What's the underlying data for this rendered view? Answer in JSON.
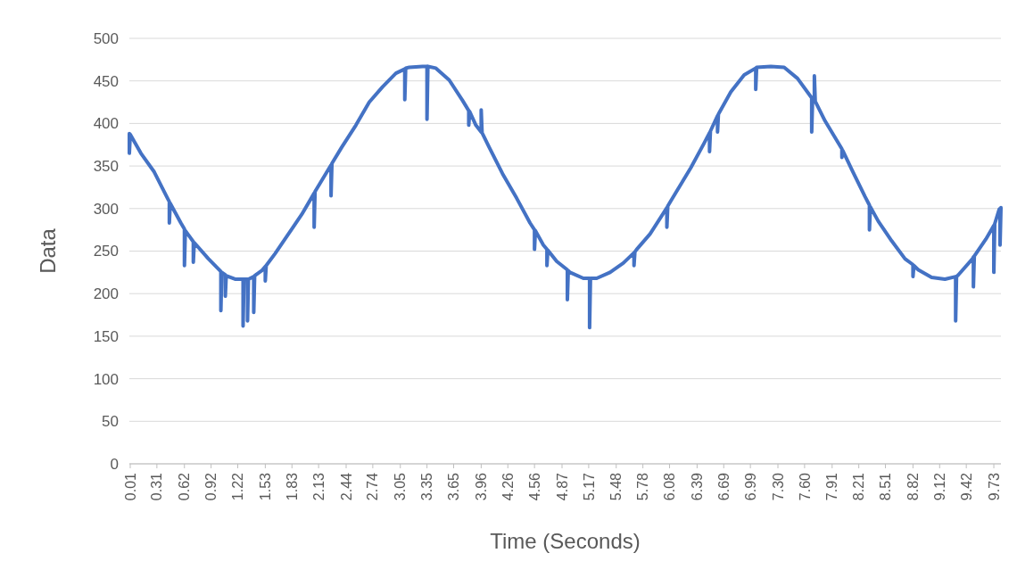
{
  "chart_data": {
    "type": "line",
    "xlabel": "Time (Seconds)",
    "ylabel": "Data",
    "x": [
      0.0,
      0.0,
      0.01,
      0.13,
      0.28,
      0.43,
      0.45,
      0.45,
      0.46,
      0.58,
      0.62,
      0.62,
      0.63,
      0.72,
      0.72,
      0.73,
      0.89,
      1.03,
      1.03,
      1.04,
      1.08,
      1.08,
      1.09,
      1.19,
      1.28,
      1.28,
      1.29,
      1.33,
      1.33,
      1.34,
      1.4,
      1.4,
      1.41,
      1.49,
      1.53,
      1.53,
      1.54,
      1.64,
      1.79,
      1.94,
      2.08,
      2.08,
      2.09,
      2.24,
      2.27,
      2.27,
      2.28,
      2.39,
      2.55,
      2.7,
      2.85,
      3.0,
      3.1,
      3.1,
      3.11,
      3.15,
      3.3,
      3.35,
      3.35,
      3.36,
      3.45,
      3.6,
      3.75,
      3.82,
      3.82,
      3.83,
      3.9,
      3.96,
      3.96,
      3.97,
      4.05,
      4.2,
      4.36,
      4.51,
      4.56,
      4.56,
      4.57,
      4.66,
      4.7,
      4.7,
      4.71,
      4.81,
      4.93,
      4.93,
      4.94,
      4.96,
      5.11,
      5.18,
      5.18,
      5.19,
      5.26,
      5.41,
      5.56,
      5.68,
      5.68,
      5.69,
      5.71,
      5.86,
      6.02,
      6.05,
      6.05,
      6.06,
      6.17,
      6.32,
      6.47,
      6.53,
      6.53,
      6.54,
      6.62,
      6.62,
      6.63,
      6.77,
      6.92,
      7.05,
      7.05,
      7.06,
      7.22,
      7.37,
      7.52,
      7.68,
      7.68,
      7.69,
      7.71,
      7.71,
      7.72,
      7.83,
      8.02,
      8.02,
      8.03,
      8.13,
      8.28,
      8.33,
      8.33,
      8.34,
      8.43,
      8.58,
      8.73,
      8.82,
      8.82,
      8.83,
      8.88,
      9.03,
      9.18,
      9.3,
      9.3,
      9.31,
      9.33,
      9.49,
      9.5,
      9.5,
      9.51,
      9.64,
      9.73,
      9.73,
      9.74,
      9.79,
      9.8,
      9.8,
      9.81
    ],
    "series": [
      {
        "color": "#4472c4",
        "values": [
          388,
          365,
          387,
          365,
          343,
          312,
          308,
          283,
          306,
          283,
          276,
          233,
          274,
          261,
          237,
          260,
          241,
          226,
          180,
          225,
          222,
          197,
          221,
          217,
          217,
          162,
          217,
          217,
          168,
          217,
          220,
          178,
          221,
          227,
          232,
          215,
          233,
          247,
          270,
          293,
          318,
          278,
          320,
          346,
          351,
          315,
          353,
          372,
          398,
          425,
          443,
          459,
          464,
          428,
          465,
          466,
          467,
          467,
          405,
          467,
          465,
          451,
          427,
          415,
          398,
          414,
          398,
          390,
          416,
          389,
          372,
          341,
          312,
          283,
          275,
          252,
          274,
          257,
          252,
          233,
          251,
          238,
          228,
          193,
          227,
          225,
          218,
          218,
          160,
          218,
          218,
          225,
          236,
          248,
          233,
          249,
          252,
          270,
          296,
          301,
          278,
          303,
          322,
          348,
          377,
          389,
          367,
          391,
          409,
          390,
          411,
          437,
          457,
          465,
          440,
          466,
          467,
          466,
          453,
          430,
          390,
          429,
          427,
          456,
          426,
          403,
          370,
          360,
          368,
          346,
          314,
          304,
          275,
          302,
          285,
          262,
          241,
          234,
          220,
          233,
          228,
          219,
          217,
          220,
          168,
          220,
          222,
          241,
          243,
          208,
          244,
          264,
          280,
          225,
          282,
          299,
          300,
          257,
          301
        ]
      }
    ],
    "xlim": [
      0,
      9.81
    ],
    "xticks": [
      0.01,
      0.31,
      0.62,
      0.92,
      1.22,
      1.53,
      1.83,
      2.13,
      2.44,
      2.74,
      3.05,
      3.35,
      3.65,
      3.96,
      4.26,
      4.56,
      4.87,
      5.17,
      5.48,
      5.78,
      6.08,
      6.39,
      6.69,
      6.99,
      {
        "value": 7.3,
        "label": "7.30"
      },
      {
        "value": 7.6,
        "label": "7.60"
      },
      7.91,
      8.21,
      8.51,
      8.82,
      9.12,
      9.42,
      9.73
    ],
    "ylim": [
      0,
      500
    ],
    "yticks": [
      0,
      50,
      100,
      150,
      200,
      250,
      300,
      350,
      400,
      450,
      500
    ],
    "grid": "y",
    "line_style": "solid"
  }
}
